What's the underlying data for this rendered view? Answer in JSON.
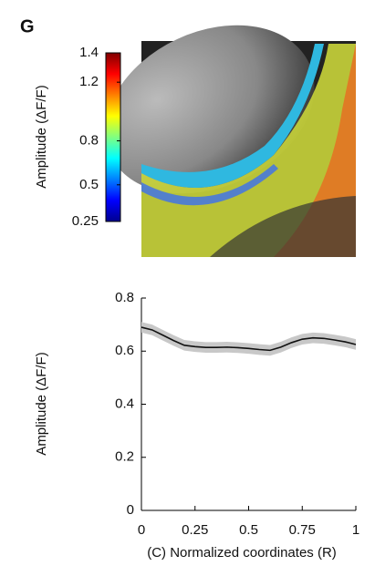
{
  "panel_label": "G",
  "chart_data": [
    {
      "type": "colorbar",
      "label": "Amplitude (ΔF/F)",
      "clim": [
        0.25,
        1.4
      ],
      "ticks": [
        0.25,
        0.5,
        0.8,
        1.2,
        1.4
      ],
      "colormap": [
        "#00008f",
        "#0000ff",
        "#0080ff",
        "#00ffff",
        "#80ff80",
        "#ffff00",
        "#ff8000",
        "#ff0000",
        "#800000"
      ]
    },
    {
      "type": "line",
      "ylabel": "Amplitude (ΔF/F)",
      "xlabel": "(C) Normalized coordinates (R)",
      "xlim": [
        0,
        1
      ],
      "xticks": [
        0,
        0.25,
        0.5,
        0.75,
        1
      ],
      "ylim": [
        0,
        0.8
      ],
      "yticks": [
        0,
        0.2,
        0.4,
        0.6,
        0.8
      ],
      "x": [
        0,
        0.05,
        0.1,
        0.15,
        0.2,
        0.25,
        0.3,
        0.35,
        0.4,
        0.45,
        0.5,
        0.55,
        0.6,
        0.65,
        0.7,
        0.75,
        0.8,
        0.85,
        0.9,
        0.95,
        1
      ],
      "series": [
        {
          "color": "#111111",
          "band_color": "#c8c8c8",
          "values": [
            0.69,
            0.68,
            0.66,
            0.64,
            0.622,
            0.617,
            0.614,
            0.614,
            0.615,
            0.613,
            0.61,
            0.606,
            0.603,
            0.615,
            0.632,
            0.645,
            0.65,
            0.648,
            0.642,
            0.635,
            0.625
          ],
          "error": [
            0.02,
            0.02,
            0.02,
            0.02,
            0.02,
            0.02,
            0.02,
            0.02,
            0.02,
            0.02,
            0.02,
            0.02,
            0.02,
            0.02,
            0.02,
            0.02,
            0.02,
            0.02,
            0.02,
            0.02,
            0.02
          ]
        }
      ]
    }
  ]
}
